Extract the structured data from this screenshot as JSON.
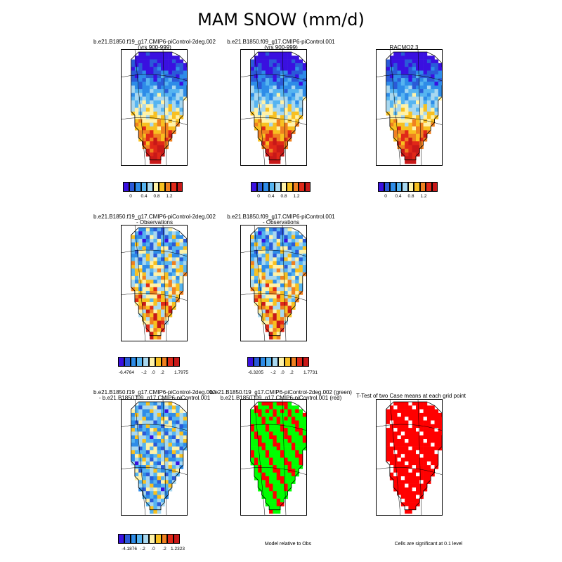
{
  "title": "MAM SNOW (mm/d)",
  "panels": {
    "p1": {
      "title_line1": "b.e21.B1850.f19_g17.CMIP6-piControl-2deg.002",
      "title_line2": "(yrs 900-999)"
    },
    "p2": {
      "title_line1": "b.e21.B1850.f09_g17.CMIP6-piControl.001",
      "title_line2": "(yrs 900-999)"
    },
    "p3": {
      "title_line1": "RACMO2.3"
    },
    "p4": {
      "title_line1": "b.e21.B1850.f19_g17.CMIP6-piControl-2deg.002",
      "title_line2": "- Observations"
    },
    "p5": {
      "title_line1": "b.e21.B1850.f09_g17.CMIP6-piControl.001",
      "title_line2": "- Observations"
    },
    "p6": {
      "title_line1": "b.e21.B1850.f19_g17.CMIP6-piControl-2deg.002",
      "title_line2": "- b.e21.B1850.f09_g17.CMIP6-piControl.001"
    },
    "p7": {
      "title_line1": "b.e21.B1850.f19_g17.CMIP6-piControl-2deg.002 (green)",
      "title_line2": "b.e21.B1850.f09_g17.CMIP6-piControl.001 (red)"
    },
    "p8": {
      "title_line1": "T-Test of two Case means at each grid point"
    }
  },
  "colorbars": {
    "abs": {
      "labels": [
        "0",
        "0.4",
        "0.8",
        "1.2"
      ]
    },
    "bias1": {
      "labels": [
        "-6.4764",
        "-.2",
        ".0",
        ".2",
        "1.7975"
      ]
    },
    "bias2": {
      "labels": [
        "-6.3205",
        "-.2",
        ".0",
        ".2",
        "1.7731"
      ]
    },
    "diff": {
      "labels": [
        "-4.1876",
        "-.2",
        ".0",
        ".2",
        "1.2323"
      ]
    }
  },
  "notes": {
    "model_relative": "Model relative to Obs",
    "significance": "Cells are significant at 0.1 level"
  },
  "colors": {
    "abs_scale": [
      "#3a10e0",
      "#2a5ad8",
      "#2e8ce8",
      "#56b4f0",
      "#a8d8f0",
      "#fff2a8",
      "#f8c020",
      "#f08020",
      "#e02818",
      "#c81818"
    ],
    "diff_scale": [
      "#3a10e0",
      "#2a5ad8",
      "#2e8ce8",
      "#56b4f0",
      "#a8d8f0",
      "#fff2a8",
      "#f8c020",
      "#f08020",
      "#e02818",
      "#c81818"
    ],
    "green": "#00ff00",
    "red": "#ff0000"
  }
}
